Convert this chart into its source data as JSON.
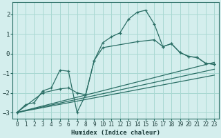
{
  "xlabel": "Humidex (Indice chaleur)",
  "background_color": "#d4eeed",
  "grid_color": "#a8d8d2",
  "line_color": "#2a6e65",
  "xlim": [
    -0.5,
    23.5
  ],
  "ylim": [
    -3.3,
    2.6
  ],
  "xticks": [
    0,
    1,
    2,
    3,
    4,
    5,
    6,
    7,
    8,
    9,
    10,
    11,
    12,
    13,
    14,
    15,
    16,
    17,
    18,
    19,
    20,
    21,
    22,
    23
  ],
  "yticks": [
    -3,
    -2,
    -1,
    0,
    1,
    2
  ],
  "series0_x": [
    0,
    1,
    2,
    3,
    4,
    5,
    6,
    7,
    8,
    9,
    10,
    11,
    12,
    13,
    14,
    15,
    16,
    17,
    18,
    19,
    20,
    21,
    22,
    23
  ],
  "series0_y": [
    -3.0,
    -2.6,
    -2.5,
    -1.9,
    -1.75,
    -0.85,
    -0.9,
    -3.0,
    -2.1,
    -0.35,
    0.55,
    0.85,
    1.05,
    1.75,
    2.1,
    2.2,
    1.5,
    0.35,
    0.5,
    0.05,
    -0.15,
    -0.2,
    -0.5,
    -0.55
  ],
  "series1_x": [
    0,
    3,
    5,
    6,
    7,
    8,
    9,
    10,
    14,
    16,
    17,
    18,
    19,
    20,
    21,
    22,
    23
  ],
  "series1_y": [
    -3.0,
    -2.0,
    -1.8,
    -1.75,
    -2.0,
    -2.1,
    -0.35,
    0.3,
    0.6,
    0.7,
    0.35,
    0.5,
    0.05,
    -0.15,
    -0.2,
    -0.5,
    -0.55
  ],
  "series2_x": [
    0,
    23
  ],
  "series2_y": [
    -3.0,
    -0.45
  ],
  "series3_x": [
    0,
    23
  ],
  "series3_y": [
    -3.0,
    -0.8
  ],
  "series4_x": [
    0,
    23
  ],
  "series4_y": [
    -3.0,
    -1.1
  ]
}
